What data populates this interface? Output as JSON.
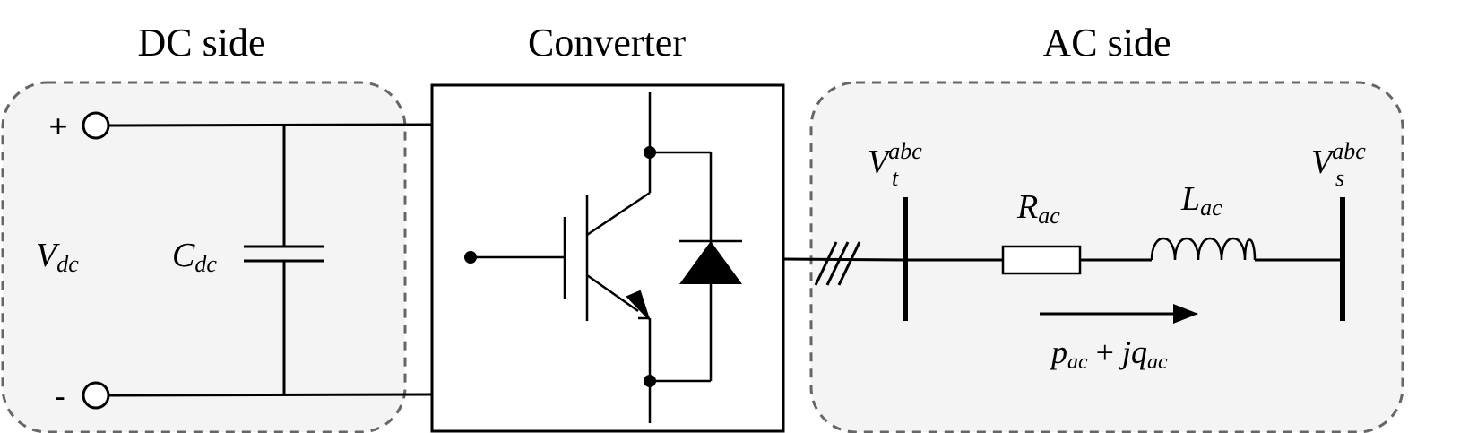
{
  "headings": {
    "dc": "DC side",
    "converter": "Converter",
    "ac": "AC side"
  },
  "terminals": {
    "plus": "+",
    "minus": "-"
  },
  "labels": {
    "vdc": {
      "base": "V",
      "sub": "dc"
    },
    "cdc": {
      "base": "C",
      "sub": "dc"
    },
    "vt": {
      "base": "V",
      "sub": "t",
      "sup": "abc"
    },
    "vs": {
      "base": "V",
      "sub": "s",
      "sup": "abc"
    },
    "rac": {
      "base": "R",
      "sub": "ac"
    },
    "lac": {
      "base": "L",
      "sub": "ac"
    },
    "power": {
      "p": "p",
      "p_sub": "ac",
      "plus": " + ",
      "jq": "jq",
      "q_sub": "ac"
    }
  }
}
